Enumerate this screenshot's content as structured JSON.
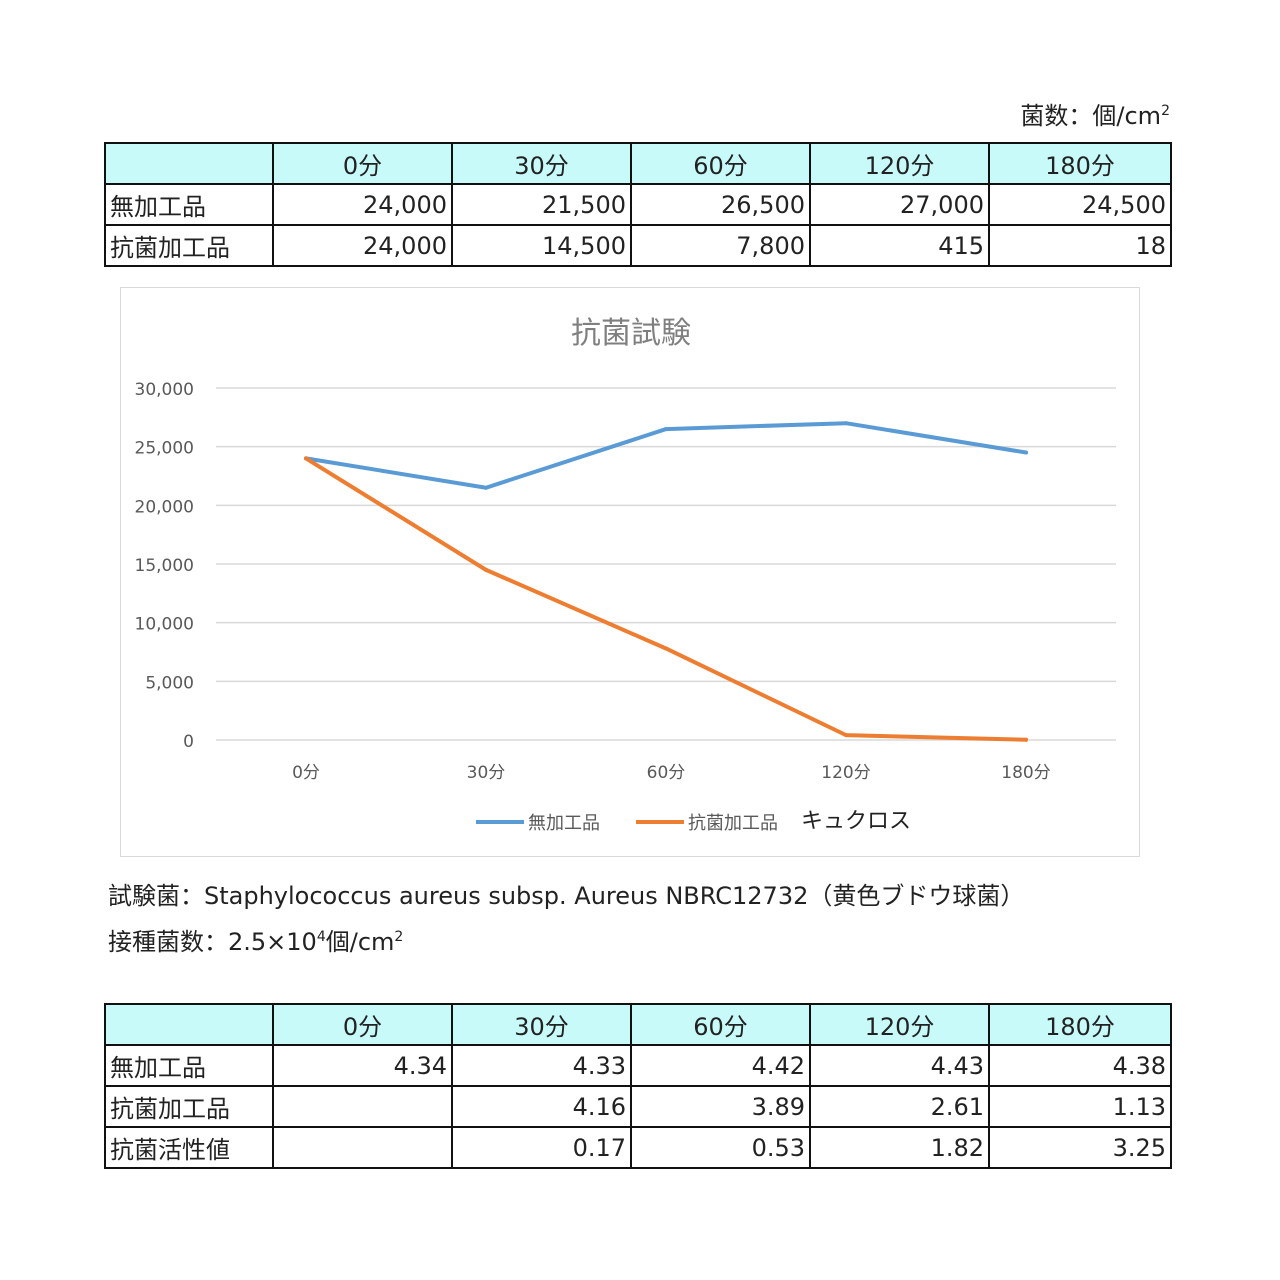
{
  "unit": {
    "label": "菌数：個/cm",
    "sup": "2"
  },
  "table1": {
    "headers": [
      "",
      "0分",
      "30分",
      "60分",
      "120分",
      "180分"
    ],
    "rows": [
      {
        "label": "無加工品",
        "values": [
          "24,000",
          "21,500",
          "26,500",
          "27,000",
          "24,500"
        ]
      },
      {
        "label": "抗菌加工品",
        "values": [
          "24,000",
          "14,500",
          "7,800",
          "415",
          "18"
        ]
      }
    ]
  },
  "chart_data": {
    "type": "line",
    "title": "抗菌試験",
    "categories": [
      "0分",
      "30分",
      "60分",
      "120分",
      "180分"
    ],
    "series": [
      {
        "name": "無加工品",
        "color": "#5b9bd5",
        "values": [
          24000,
          21500,
          26500,
          27000,
          24500
        ]
      },
      {
        "name": "抗菌加工品",
        "color": "#ed7d31",
        "values": [
          24000,
          14500,
          7800,
          415,
          18
        ]
      }
    ],
    "ylim": [
      0,
      30000
    ],
    "yticks": [
      0,
      5000,
      10000,
      15000,
      20000,
      25000,
      30000
    ],
    "ytick_labels": [
      "0",
      "5,000",
      "10,000",
      "15,000",
      "20,000",
      "25,000",
      "30,000"
    ],
    "grid": true,
    "legend": "bottom",
    "annotation": "キュクロス"
  },
  "info": {
    "line1": "試験菌：Staphylococcus aureus subsp. Aureus NBRC12732（黄色ブドウ球菌）",
    "line2_a": "接種菌数：2.5×10",
    "line2_exp": "4",
    "line2_b": "個/cm",
    "line2_sup": "2"
  },
  "table2": {
    "headers": [
      "",
      "0分",
      "30分",
      "60分",
      "120分",
      "180分"
    ],
    "rows": [
      {
        "label": "無加工品",
        "values": [
          "4.34",
          "4.33",
          "4.42",
          "4.43",
          "4.38"
        ]
      },
      {
        "label": "抗菌加工品",
        "values": [
          "",
          "4.16",
          "3.89",
          "2.61",
          "1.13"
        ]
      },
      {
        "label": "抗菌活性値",
        "values": [
          "",
          "0.17",
          "0.53",
          "1.82",
          "3.25"
        ]
      }
    ]
  },
  "colors": {
    "header_bg": "#c8fafa",
    "series1": "#5b9bd5",
    "series2": "#ed7d31",
    "grid": "#d9d9d9"
  }
}
